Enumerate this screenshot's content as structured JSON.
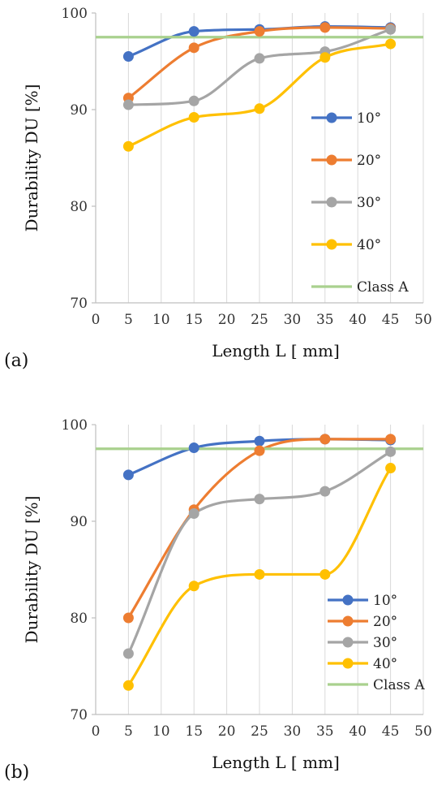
{
  "chart_data": [
    {
      "type": "line",
      "panel_label": "(a)",
      "xlabel": "Length L [ mm]",
      "ylabel": "Durability DU [%]",
      "xlim": [
        0,
        50
      ],
      "ylim": [
        70,
        100
      ],
      "x_ticks": [
        0,
        5,
        10,
        15,
        20,
        25,
        30,
        35,
        40,
        45,
        50
      ],
      "y_ticks": [
        70,
        80,
        90,
        100
      ],
      "grid": "vertical",
      "legend_position": "right",
      "x": [
        5,
        15,
        25,
        35,
        45
      ],
      "series": [
        {
          "name": "10°",
          "color": "#4472C4",
          "values": [
            95.5,
            98.1,
            98.3,
            98.6,
            98.5
          ]
        },
        {
          "name": "20°",
          "color": "#ED7D31",
          "values": [
            91.2,
            96.4,
            98.1,
            98.5,
            98.4
          ]
        },
        {
          "name": "30°",
          "color": "#A5A5A5",
          "values": [
            90.5,
            90.9,
            95.3,
            96.0,
            98.3
          ]
        },
        {
          "name": "40°",
          "color": "#FFC000",
          "values": [
            86.2,
            89.2,
            90.1,
            95.4,
            96.8
          ]
        }
      ],
      "reference_line": {
        "name": "Class A",
        "color": "#A9D18E",
        "value": 97.5
      }
    },
    {
      "type": "line",
      "panel_label": "(b)",
      "xlabel": "Length L [ mm]",
      "ylabel": "Durability DU [%]",
      "xlim": [
        0,
        50
      ],
      "ylim": [
        70,
        100
      ],
      "x_ticks": [
        0,
        5,
        10,
        15,
        20,
        25,
        30,
        35,
        40,
        45,
        50
      ],
      "y_ticks": [
        70,
        80,
        90,
        100
      ],
      "grid": "vertical",
      "legend_position": "bottom-right",
      "x": [
        5,
        15,
        25,
        35,
        45
      ],
      "series": [
        {
          "name": "10°",
          "color": "#4472C4",
          "values": [
            94.8,
            97.6,
            98.3,
            98.5,
            98.4
          ]
        },
        {
          "name": "20°",
          "color": "#ED7D31",
          "values": [
            80.0,
            91.2,
            97.3,
            98.5,
            98.5
          ]
        },
        {
          "name": "30°",
          "color": "#A5A5A5",
          "values": [
            76.3,
            90.8,
            92.3,
            93.1,
            97.2
          ]
        },
        {
          "name": "40°",
          "color": "#FFC000",
          "values": [
            73.0,
            83.3,
            84.5,
            84.5,
            95.5
          ]
        }
      ],
      "reference_line": {
        "name": "Class A",
        "color": "#A9D18E",
        "value": 97.5
      }
    }
  ]
}
